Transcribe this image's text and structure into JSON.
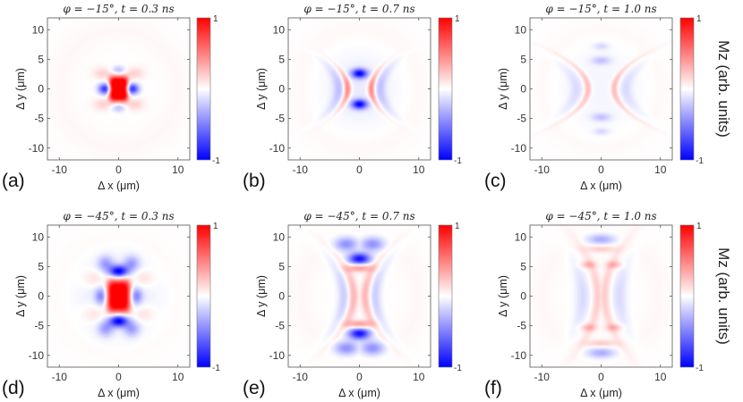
{
  "chart_data": [
    {
      "type": "heatmap",
      "panel": "(a)",
      "title": "φ = −15°, t = 0.3 ns",
      "phi_deg": -15,
      "t_ns": 0.3,
      "xlabel": "Δ x (μm)",
      "ylabel": "Δ y (μm)",
      "xlim": [
        -12,
        12
      ],
      "ylim": [
        -12,
        12
      ],
      "xticks": [
        -10,
        0,
        10
      ],
      "yticks": [
        -10,
        -5,
        0,
        5,
        10
      ],
      "colorbar": {
        "min": -1,
        "max": 1,
        "ticks": [
          "1",
          "-1"
        ],
        "colormap": "blue-white-red"
      }
    },
    {
      "type": "heatmap",
      "panel": "(b)",
      "title": "φ = −15°, t = 0.7 ns",
      "phi_deg": -15,
      "t_ns": 0.7,
      "xlabel": "",
      "ylabel": "Δ y (μm)",
      "xlim": [
        -12,
        12
      ],
      "ylim": [
        -12,
        12
      ],
      "xticks": [
        -10,
        0,
        10
      ],
      "yticks": [
        -10,
        -5,
        0,
        5,
        10
      ],
      "colorbar": {
        "min": -1,
        "max": 1,
        "ticks": [
          "1",
          "-1"
        ],
        "colormap": "blue-white-red"
      }
    },
    {
      "type": "heatmap",
      "panel": "(c)",
      "title": "φ = −15°, t = 1.0 ns",
      "phi_deg": -15,
      "t_ns": 1.0,
      "xlabel": "Δ x (μm)",
      "ylabel": "Δ y (μm)",
      "xlim": [
        -12,
        12
      ],
      "ylim": [
        -12,
        12
      ],
      "xticks": [
        -10,
        0,
        10
      ],
      "yticks": [
        -10,
        -5,
        0,
        5,
        10
      ],
      "colorbar": {
        "min": -1,
        "max": 1,
        "ticks": [
          "1",
          "-1"
        ],
        "colormap": "blue-white-red",
        "label": "Mz (arb. units)"
      }
    },
    {
      "type": "heatmap",
      "panel": "(d)",
      "title": "φ = −45°, t = 0.3 ns",
      "phi_deg": -45,
      "t_ns": 0.3,
      "xlabel": "Δ x (μm)",
      "ylabel": "Δ y (μm)",
      "xlim": [
        -12,
        12
      ],
      "ylim": [
        -12,
        12
      ],
      "xticks": [
        -10,
        0,
        10
      ],
      "yticks": [
        -10,
        -5,
        0,
        5,
        10
      ],
      "colorbar": {
        "min": -1,
        "max": 1,
        "ticks": [
          "1",
          "-1"
        ],
        "colormap": "blue-white-red"
      }
    },
    {
      "type": "heatmap",
      "panel": "(e)",
      "title": "φ = −45°, t = 0.7 ns",
      "phi_deg": -45,
      "t_ns": 0.7,
      "xlabel": "Δ x (μm)",
      "ylabel": "Δ y (μm)",
      "xlim": [
        -12,
        12
      ],
      "ylim": [
        -12,
        12
      ],
      "xticks": [
        -10,
        0,
        10
      ],
      "yticks": [
        -10,
        -5,
        0,
        5,
        10
      ],
      "colorbar": {
        "min": -1,
        "max": 1,
        "ticks": [
          "1",
          "-1"
        ],
        "colormap": "blue-white-red"
      }
    },
    {
      "type": "heatmap",
      "panel": "(f)",
      "title": "φ = −45°, t = 1.0 ns",
      "phi_deg": -45,
      "t_ns": 1.0,
      "xlabel": "Δ x (μm)",
      "ylabel": "Δ y (μm)",
      "xlim": [
        -12,
        12
      ],
      "ylim": [
        -12,
        12
      ],
      "xticks": [
        -10,
        0,
        10
      ],
      "yticks": [
        -10,
        -5,
        0,
        5,
        10
      ],
      "colorbar": {
        "min": -1,
        "max": 1,
        "ticks": [
          "1",
          "-1"
        ],
        "colormap": "blue-white-red",
        "label": "Mz (arb. units)"
      }
    }
  ],
  "colors": {
    "positive": "#ff0000",
    "zero": "#ffffff",
    "negative": "#0000ff",
    "axis": "#555555"
  }
}
